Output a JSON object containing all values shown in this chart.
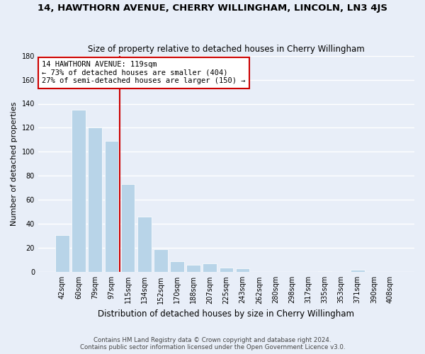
{
  "title": "14, HAWTHORN AVENUE, CHERRY WILLINGHAM, LINCOLN, LN3 4JS",
  "subtitle": "Size of property relative to detached houses in Cherry Willingham",
  "xlabel": "Distribution of detached houses by size in Cherry Willingham",
  "ylabel": "Number of detached properties",
  "bar_labels": [
    "42sqm",
    "60sqm",
    "79sqm",
    "97sqm",
    "115sqm",
    "134sqm",
    "152sqm",
    "170sqm",
    "188sqm",
    "207sqm",
    "225sqm",
    "243sqm",
    "262sqm",
    "280sqm",
    "298sqm",
    "317sqm",
    "335sqm",
    "353sqm",
    "371sqm",
    "390sqm",
    "408sqm"
  ],
  "bar_values": [
    31,
    135,
    120,
    109,
    73,
    46,
    19,
    9,
    6,
    7,
    4,
    3,
    0,
    0,
    0,
    0,
    1,
    0,
    2,
    0,
    0
  ],
  "bar_color": "#b8d4e8",
  "annotation_line1": "14 HAWTHORN AVENUE: 119sqm",
  "annotation_line2": "← 73% of detached houses are smaller (404)",
  "annotation_line3": "27% of semi-detached houses are larger (150) →",
  "annotation_box_color": "#ffffff",
  "annotation_border_color": "#cc0000",
  "vline_color": "#cc0000",
  "vline_x": 3.5,
  "ylim": [
    0,
    180
  ],
  "yticks": [
    0,
    20,
    40,
    60,
    80,
    100,
    120,
    140,
    160,
    180
  ],
  "footer_line1": "Contains HM Land Registry data © Crown copyright and database right 2024.",
  "footer_line2": "Contains public sector information licensed under the Open Government Licence v3.0.",
  "bg_color": "#e8eef8",
  "grid_color": "#ffffff"
}
